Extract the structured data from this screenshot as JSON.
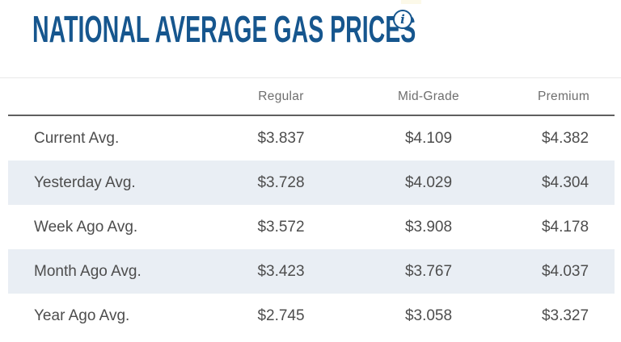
{
  "page": {
    "title": "NATIONAL AVERAGE GAS PRICES",
    "info_icon_glyph": "i"
  },
  "colors": {
    "title_blue": "#16568e",
    "header_gray": "#6e6e6e",
    "text_gray": "#4d4d4d",
    "row_alt_bg": "#e9eef4",
    "divider_dark": "#606060",
    "divider_light": "#e8e8e8"
  },
  "table": {
    "columns": [
      "Regular",
      "Mid-Grade",
      "Premium"
    ],
    "rows": [
      {
        "label": "Current Avg.",
        "regular": "$3.837",
        "mid_grade": "$4.109",
        "premium": "$4.382"
      },
      {
        "label": "Yesterday Avg.",
        "regular": "$3.728",
        "mid_grade": "$4.029",
        "premium": "$4.304"
      },
      {
        "label": "Week Ago Avg.",
        "regular": "$3.572",
        "mid_grade": "$3.908",
        "premium": "$4.178"
      },
      {
        "label": "Month Ago Avg.",
        "regular": "$3.423",
        "mid_grade": "$3.767",
        "premium": "$4.037"
      },
      {
        "label": "Year Ago Avg.",
        "regular": "$2.745",
        "mid_grade": "$3.058",
        "premium": "$3.327"
      }
    ]
  }
}
